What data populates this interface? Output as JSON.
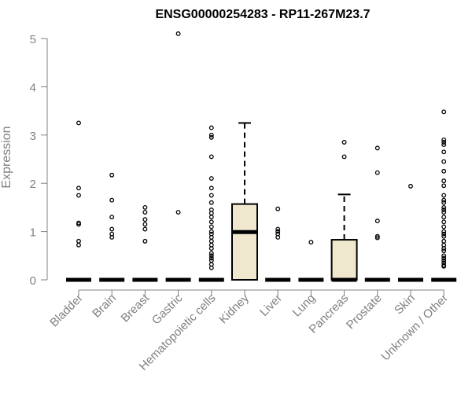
{
  "chart_data": {
    "type": "box",
    "title": "ENSG00000254283 - RP11-267M23.7",
    "ylabel": "Expression",
    "xlabel": "",
    "ylim": [
      0,
      5.2
    ],
    "yticks": [
      "0",
      "1",
      "2",
      "3",
      "4",
      "5"
    ],
    "categories": [
      "Bladder",
      "Brain",
      "Breast",
      "Gastric",
      "Hematopoietic cells",
      "Kidney",
      "Liver",
      "Lung",
      "Pancreas",
      "Prostate",
      "Skin",
      "Unknown / Other"
    ],
    "box_fill": "#efe8cf",
    "boxes": [
      {
        "category": "Bladder",
        "min": 0,
        "q1": 0,
        "median": 0,
        "q3": 0,
        "max": 0,
        "outliers": [
          3.25,
          1.9,
          1.75,
          1.18,
          1.15,
          0.8,
          0.72
        ]
      },
      {
        "category": "Brain",
        "min": 0,
        "q1": 0,
        "median": 0,
        "q3": 0,
        "max": 0,
        "outliers": [
          2.17,
          1.65,
          1.3,
          1.05,
          0.95,
          0.88
        ]
      },
      {
        "category": "Breast",
        "min": 0,
        "q1": 0,
        "median": 0,
        "q3": 0,
        "max": 0,
        "outliers": [
          1.5,
          1.4,
          1.25,
          1.15,
          1.05,
          0.8
        ]
      },
      {
        "category": "Gastric",
        "min": 0,
        "q1": 0,
        "median": 0,
        "q3": 0,
        "max": 0,
        "outliers": [
          5.1,
          1.4
        ]
      },
      {
        "category": "Hematopoietic cells",
        "min": 0,
        "q1": 0,
        "median": 0,
        "q3": 0,
        "max": 0,
        "outliers": [
          3.15,
          3.0,
          2.95,
          2.55,
          2.1,
          1.9,
          1.75,
          1.6,
          1.45,
          1.38,
          1.3,
          1.2,
          1.1,
          1.0,
          0.95,
          0.88,
          0.8,
          0.72,
          0.65,
          0.55,
          0.5,
          0.45,
          0.4,
          0.32,
          0.25
        ]
      },
      {
        "category": "Kidney",
        "min": 0,
        "q1": 0,
        "median": 0.99,
        "q3": 1.57,
        "max": 3.25,
        "outliers": []
      },
      {
        "category": "Liver",
        "min": 0,
        "q1": 0,
        "median": 0,
        "q3": 0,
        "max": 0,
        "outliers": [
          1.47,
          1.05,
          1.0,
          0.95,
          0.88
        ]
      },
      {
        "category": "Lung",
        "min": 0,
        "q1": 0,
        "median": 0,
        "q3": 0,
        "max": 0,
        "outliers": [
          0.78
        ]
      },
      {
        "category": "Pancreas",
        "min": 0,
        "q1": 0,
        "median": 0,
        "q3": 0.83,
        "max": 1.77,
        "outliers": [
          2.85,
          2.55
        ]
      },
      {
        "category": "Prostate",
        "min": 0,
        "q1": 0,
        "median": 0,
        "q3": 0,
        "max": 0,
        "outliers": [
          2.73,
          2.22,
          1.22,
          0.9,
          0.87
        ]
      },
      {
        "category": "Skin",
        "min": 0,
        "q1": 0,
        "median": 0,
        "q3": 0,
        "max": 0,
        "outliers": [
          1.94
        ]
      },
      {
        "category": "Unknown / Other",
        "min": 0,
        "q1": 0,
        "median": 0,
        "q3": 0,
        "max": 0,
        "outliers": [
          3.48,
          2.9,
          2.85,
          2.8,
          2.65,
          2.45,
          2.25,
          2.05,
          1.95,
          1.75,
          1.65,
          1.6,
          1.5,
          1.45,
          1.4,
          1.3,
          1.2,
          1.1,
          1.0,
          0.95,
          0.9,
          0.8,
          0.72,
          0.65,
          0.6,
          0.5,
          0.45,
          0.4,
          0.35,
          0.3,
          0.28
        ]
      }
    ]
  }
}
